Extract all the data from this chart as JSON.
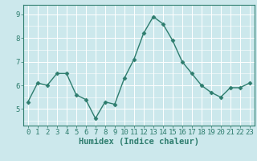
{
  "x": [
    0,
    1,
    2,
    3,
    4,
    5,
    6,
    7,
    8,
    9,
    10,
    11,
    12,
    13,
    14,
    15,
    16,
    17,
    18,
    19,
    20,
    21,
    22,
    23
  ],
  "y": [
    5.3,
    6.1,
    6.0,
    6.5,
    6.5,
    5.6,
    5.4,
    4.6,
    5.3,
    5.2,
    6.3,
    7.1,
    8.2,
    8.9,
    8.6,
    7.9,
    7.0,
    6.5,
    6.0,
    5.7,
    5.5,
    5.9,
    5.9,
    6.1
  ],
  "line_color": "#2e7d6e",
  "marker": "D",
  "marker_size": 2.5,
  "bg_color": "#cce8ec",
  "grid_color": "#ffffff",
  "xlabel": "Humidex (Indice chaleur)",
  "ylim": [
    4.3,
    9.4
  ],
  "xlim": [
    -0.5,
    23.5
  ],
  "yticks": [
    5,
    6,
    7,
    8,
    9
  ],
  "xticks": [
    0,
    1,
    2,
    3,
    4,
    5,
    6,
    7,
    8,
    9,
    10,
    11,
    12,
    13,
    14,
    15,
    16,
    17,
    18,
    19,
    20,
    21,
    22,
    23
  ],
  "tick_color": "#2e7d6e",
  "label_color": "#2e7d6e",
  "font_size_ticks": 6.5,
  "font_size_xlabel": 7.5,
  "line_width": 1.0
}
